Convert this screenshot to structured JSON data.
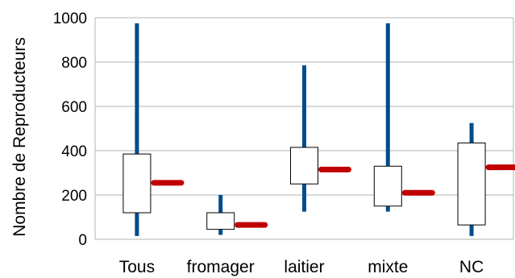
{
  "chart_data": {
    "type": "box",
    "ylabel": "Nombre de Reproducteurs",
    "xlabel": "",
    "ylim": [
      0,
      1000
    ],
    "yticks": [
      0,
      200,
      400,
      600,
      800,
      1000
    ],
    "yticklabels": [
      "0",
      "200",
      "400",
      "600",
      "800",
      "1000"
    ],
    "grid": true,
    "categories": [
      "Tous",
      "fromager",
      "laitier",
      "mixte",
      "NC"
    ],
    "min": [
      15,
      20,
      125,
      125,
      15
    ],
    "max": [
      975,
      200,
      785,
      975,
      525
    ],
    "q1": [
      120,
      45,
      250,
      150,
      65
    ],
    "q3": [
      385,
      120,
      415,
      330,
      435
    ],
    "mean": [
      255,
      65,
      315,
      210,
      325
    ],
    "colors": {
      "whisker": "#004C8C",
      "mean": "#C00000",
      "box": "#000000",
      "grid": "#B3B3B3"
    }
  }
}
